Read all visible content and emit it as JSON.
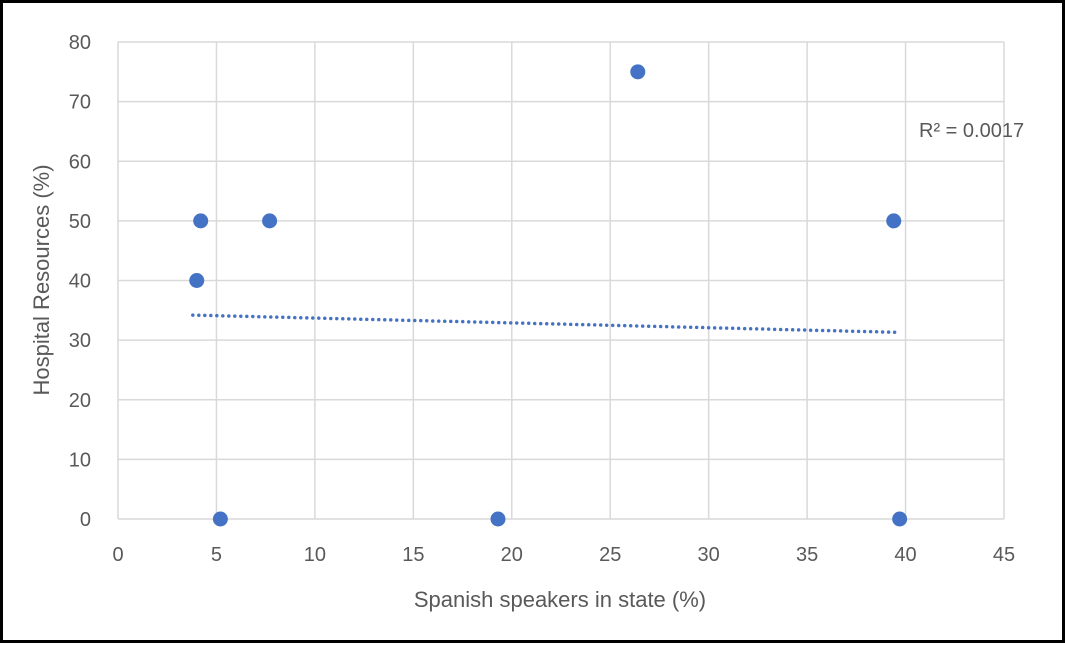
{
  "chart_data": {
    "type": "scatter",
    "xlabel": "Spanish speakers in state (%)",
    "ylabel": "Hospital Resources (%)",
    "xlim": [
      0,
      45
    ],
    "ylim": [
      0,
      80
    ],
    "x_ticks": [
      0,
      5,
      10,
      15,
      20,
      25,
      30,
      35,
      40,
      45
    ],
    "y_ticks": [
      0,
      10,
      20,
      30,
      40,
      50,
      60,
      70,
      80
    ],
    "grid": true,
    "legend": "none",
    "marker_color": "#4472C4",
    "series": [
      {
        "points": [
          {
            "x": 4.0,
            "y": 40
          },
          {
            "x": 4.2,
            "y": 50
          },
          {
            "x": 5.2,
            "y": 0
          },
          {
            "x": 7.7,
            "y": 50
          },
          {
            "x": 19.3,
            "y": 0
          },
          {
            "x": 26.4,
            "y": 75
          },
          {
            "x": 39.4,
            "y": 50
          },
          {
            "x": 39.7,
            "y": 0
          }
        ]
      }
    ],
    "trendline": {
      "type": "linear",
      "style": "dotted",
      "color": "#4472C4",
      "x_range": [
        3.8,
        39.7
      ],
      "y_start": 34.2,
      "y_end": 31.3,
      "label": "R² = 0.0017"
    }
  }
}
